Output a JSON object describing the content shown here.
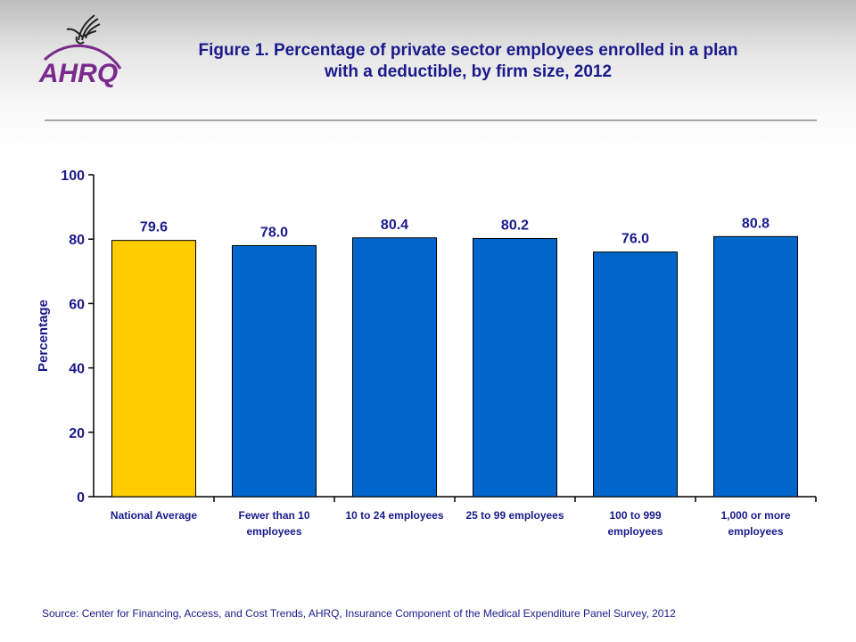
{
  "logo": {
    "text": "AHRQ",
    "colors": {
      "purple": "#7a2a8c",
      "bird": "#222222"
    }
  },
  "title": "Figure 1. Percentage of private sector employees enrolled in a plan with a deductible, by firm size, 2012",
  "source": "Source: Center for Financing, Access, and Cost Trends, AHRQ, Insurance Component of the Medical Expenditure Panel Survey,  2012",
  "chart_data": {
    "type": "bar",
    "title": "Figure 1. Percentage of private sector employees enrolled in a plan with a deductible, by firm size, 2012",
    "xlabel": "",
    "ylabel": "Percentage",
    "ylim": [
      0,
      100
    ],
    "yticks": [
      0,
      20,
      40,
      60,
      80,
      100
    ],
    "grid": false,
    "categories": [
      [
        "National Average"
      ],
      [
        "Fewer than 10",
        "employees"
      ],
      [
        "10 to 24 employees"
      ],
      [
        "25 to 99 employees"
      ],
      [
        "100 to 999",
        "employees"
      ],
      [
        "1,000 or more",
        "employees"
      ]
    ],
    "values": [
      79.6,
      78.0,
      80.4,
      80.2,
      76.0,
      80.8
    ],
    "data_labels": [
      "79.6",
      "78.0",
      "80.4",
      "80.2",
      "76.0",
      "80.8"
    ],
    "colors": [
      "#FFCC00",
      "#0066CC",
      "#0066CC",
      "#0066CC",
      "#0066CC",
      "#0066CC"
    ],
    "text_color": "#1a1a8c"
  }
}
